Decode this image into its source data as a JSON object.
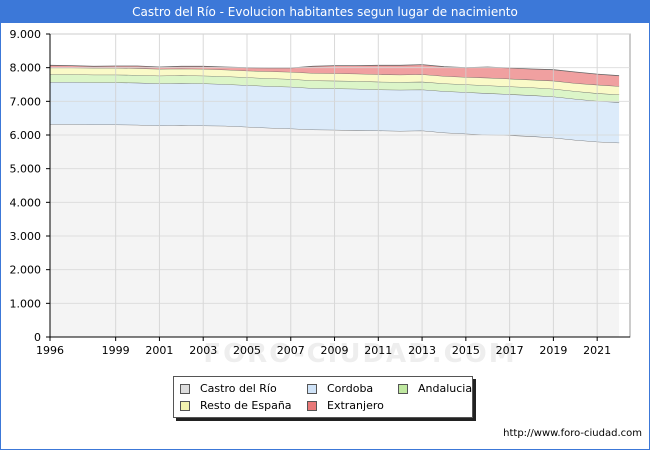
{
  "title": "Castro del Río - Evolucion habitantes segun lugar de nacimiento",
  "source": "http://www.foro-ciudad.com",
  "watermark": "FORO-CIUDAD.COM",
  "colors": {
    "header": "#3c78d8",
    "plot_bg": "#f4f4f4",
    "grid": "#cccccc"
  },
  "chart_data": {
    "type": "area",
    "stacked": true,
    "x": [
      1996,
      1997,
      1998,
      1999,
      2000,
      2001,
      2002,
      2003,
      2004,
      2005,
      2006,
      2007,
      2008,
      2009,
      2010,
      2011,
      2012,
      2013,
      2014,
      2015,
      2016,
      2017,
      2018,
      2019,
      2020,
      2021,
      2022
    ],
    "x_ticks": [
      1996,
      1999,
      2001,
      2003,
      2005,
      2007,
      2009,
      2011,
      2013,
      2015,
      2017,
      2019,
      2021
    ],
    "y_ticks": [
      0,
      1000,
      2000,
      3000,
      4000,
      5000,
      6000,
      7000,
      8000,
      9000
    ],
    "y_tick_labels": [
      "0",
      "1.000",
      "2.000",
      "3.000",
      "4.000",
      "5.000",
      "6.000",
      "7.000",
      "8.000",
      "9.000"
    ],
    "ylim": [
      0,
      9000
    ],
    "grid": true,
    "legend_position": "bottom",
    "series": [
      {
        "name": "Castro del Río",
        "color": "#f4f4f4",
        "line": "#666666",
        "values": [
          6320,
          6320,
          6310,
          6310,
          6300,
          6280,
          6290,
          6280,
          6270,
          6240,
          6210,
          6190,
          6160,
          6150,
          6140,
          6130,
          6120,
          6130,
          6070,
          6040,
          6010,
          5990,
          5960,
          5920,
          5850,
          5800,
          5770
        ]
      },
      {
        "name": "Cordoba",
        "color": "#dcebfa",
        "line": "#666666",
        "values": [
          1250,
          1250,
          1250,
          1250,
          1250,
          1250,
          1250,
          1250,
          1240,
          1240,
          1240,
          1240,
          1230,
          1230,
          1230,
          1220,
          1220,
          1220,
          1230,
          1230,
          1230,
          1220,
          1220,
          1220,
          1220,
          1210,
          1200
        ]
      },
      {
        "name": "Andalucia",
        "color": "#dcf5c8",
        "line": "#666666",
        "values": [
          230,
          230,
          230,
          230,
          230,
          230,
          230,
          230,
          230,
          230,
          230,
          230,
          230,
          230,
          230,
          230,
          230,
          230,
          230,
          230,
          230,
          230,
          230,
          230,
          230,
          230,
          230
        ]
      },
      {
        "name": "Resto de España",
        "color": "#fafac8",
        "line": "#666666",
        "values": [
          200,
          200,
          200,
          200,
          200,
          200,
          200,
          200,
          200,
          200,
          210,
          210,
          220,
          220,
          220,
          220,
          220,
          220,
          220,
          220,
          230,
          230,
          230,
          240,
          240,
          250,
          250
        ]
      },
      {
        "name": "Extranjero",
        "color": "#f0a0a0",
        "line": "#666666",
        "values": [
          70,
          60,
          50,
          60,
          70,
          60,
          70,
          80,
          80,
          90,
          100,
          120,
          200,
          230,
          240,
          270,
          280,
          290,
          280,
          280,
          320,
          320,
          320,
          330,
          330,
          320,
          310
        ]
      }
    ]
  },
  "legend": {
    "items": [
      {
        "label": "Castro del Río",
        "color": "#dddddd"
      },
      {
        "label": "Cordoba",
        "color": "#cfe3f8"
      },
      {
        "label": "Andalucia",
        "color": "#bfe8a0"
      },
      {
        "label": "Resto de España",
        "color": "#f4f4b0"
      },
      {
        "label": "Extranjero",
        "color": "#e87878"
      }
    ]
  }
}
